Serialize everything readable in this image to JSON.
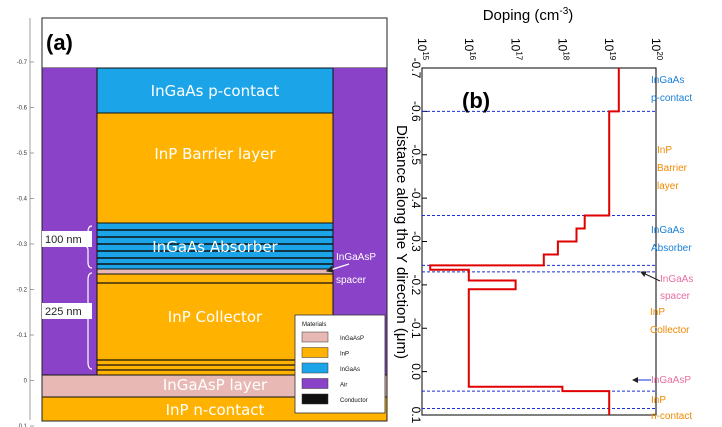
{
  "panel_a": {
    "label": "(a)",
    "y_ticks": [
      "-0.7",
      "-0.6",
      "-0.5",
      "-0.4",
      "-0.3",
      "-0.2",
      "-0.1",
      "0",
      "0.1"
    ],
    "layers": {
      "p_contact": "InGaAs p-contact",
      "barrier": "InP Barrier layer",
      "absorber": "InGaAs Absorber",
      "collector": "InP Collector",
      "ingaasp_layer": "InGaAsP layer",
      "n_contact": "InP n-contact"
    },
    "spacer_label": [
      "InGaAsP",
      "spacer"
    ],
    "thickness_labels": [
      "100 nm",
      "225 nm"
    ],
    "legend": {
      "title": "Materials",
      "items": [
        {
          "label": "InGaAsP",
          "color": "#E8B9B4"
        },
        {
          "label": "InP",
          "color": "#FFB300"
        },
        {
          "label": "InGaAs",
          "color": "#1BA5E8"
        },
        {
          "label": "Air",
          "color": "#8A42C8"
        },
        {
          "label": "Conductor",
          "color": "#101010"
        }
      ]
    },
    "colors": {
      "inp": "#FFB300",
      "ingaas": "#1BA5E8",
      "ingaasp": "#E8B9B4",
      "air": "#8A42C8",
      "conductor": "#101010"
    }
  },
  "panel_b": {
    "label": "(b)",
    "chart_data": {
      "type": "line",
      "title": "",
      "xlabel": "Distance along the Y direction (μm)",
      "ylabel_parts": [
        "Doping (cm",
        "-3",
        ")"
      ],
      "x_range": [
        -0.7,
        0.1
      ],
      "x_ticks": [
        "-0.7",
        "-0.6",
        "-0.5",
        "-0.4",
        "-0.3",
        "-0.2",
        "-0.1",
        "0.0",
        "0.1"
      ],
      "doping_scale": "log",
      "doping_range": [
        1000000000000000.0,
        1e+20
      ],
      "doping_ticks": [
        {
          "base": "10",
          "exp": "15"
        },
        {
          "base": "10",
          "exp": "16"
        },
        {
          "base": "10",
          "exp": "17"
        },
        {
          "base": "10",
          "exp": "18"
        },
        {
          "base": "10",
          "exp": "19"
        },
        {
          "base": "10",
          "exp": "20"
        }
      ],
      "series": [
        {
          "color": "#E00000",
          "points": [
            [
              -0.7,
              1.6e+19
            ],
            [
              -0.6,
              1.6e+19
            ],
            [
              -0.6,
              1e+19
            ],
            [
              -0.36,
              1e+19
            ],
            [
              -0.36,
              3e+18
            ],
            [
              -0.33,
              3e+18
            ],
            [
              -0.33,
              2e+18
            ],
            [
              -0.3,
              2e+18
            ],
            [
              -0.3,
              8e+17
            ],
            [
              -0.27,
              8e+17
            ],
            [
              -0.27,
              4e+17
            ],
            [
              -0.245,
              4e+17
            ],
            [
              -0.245,
              1500000000000000.0
            ],
            [
              -0.235,
              1500000000000000.0
            ],
            [
              -0.235,
              1e+16
            ],
            [
              -0.21,
              1e+16
            ],
            [
              -0.21,
              1e+17
            ],
            [
              -0.19,
              1e+17
            ],
            [
              -0.19,
              1e+16
            ],
            [
              0.035,
              1e+16
            ],
            [
              0.035,
              1e+18
            ],
            [
              0.045,
              1e+18
            ],
            [
              0.045,
              1e+19
            ],
            [
              0.1,
              1e+19
            ]
          ]
        }
      ],
      "boundaries": [
        -0.6,
        -0.36,
        -0.245,
        -0.23,
        0.045,
        0.085
      ],
      "boundary_color": "#1A2FD8"
    },
    "annotations": [
      {
        "lines": [
          "InGaAs",
          "p-contact"
        ],
        "color": "#1A7FD8"
      },
      {
        "lines": [
          "InP",
          "Barrier",
          "layer"
        ],
        "color": "#F08A00"
      },
      {
        "lines": [
          "InGaAs",
          "Absorber"
        ],
        "color": "#1A7FD8"
      },
      {
        "lines": [
          "InGaAs",
          "spacer"
        ],
        "color": "#E86FA0"
      },
      {
        "lines": [
          "InP",
          "Collector"
        ],
        "color": "#F08A00"
      },
      {
        "lines": [
          "InGaAsP"
        ],
        "color": "#E86FA0"
      },
      {
        "lines": [
          "InP",
          "n-contact"
        ],
        "color": "#F08A00"
      }
    ]
  }
}
